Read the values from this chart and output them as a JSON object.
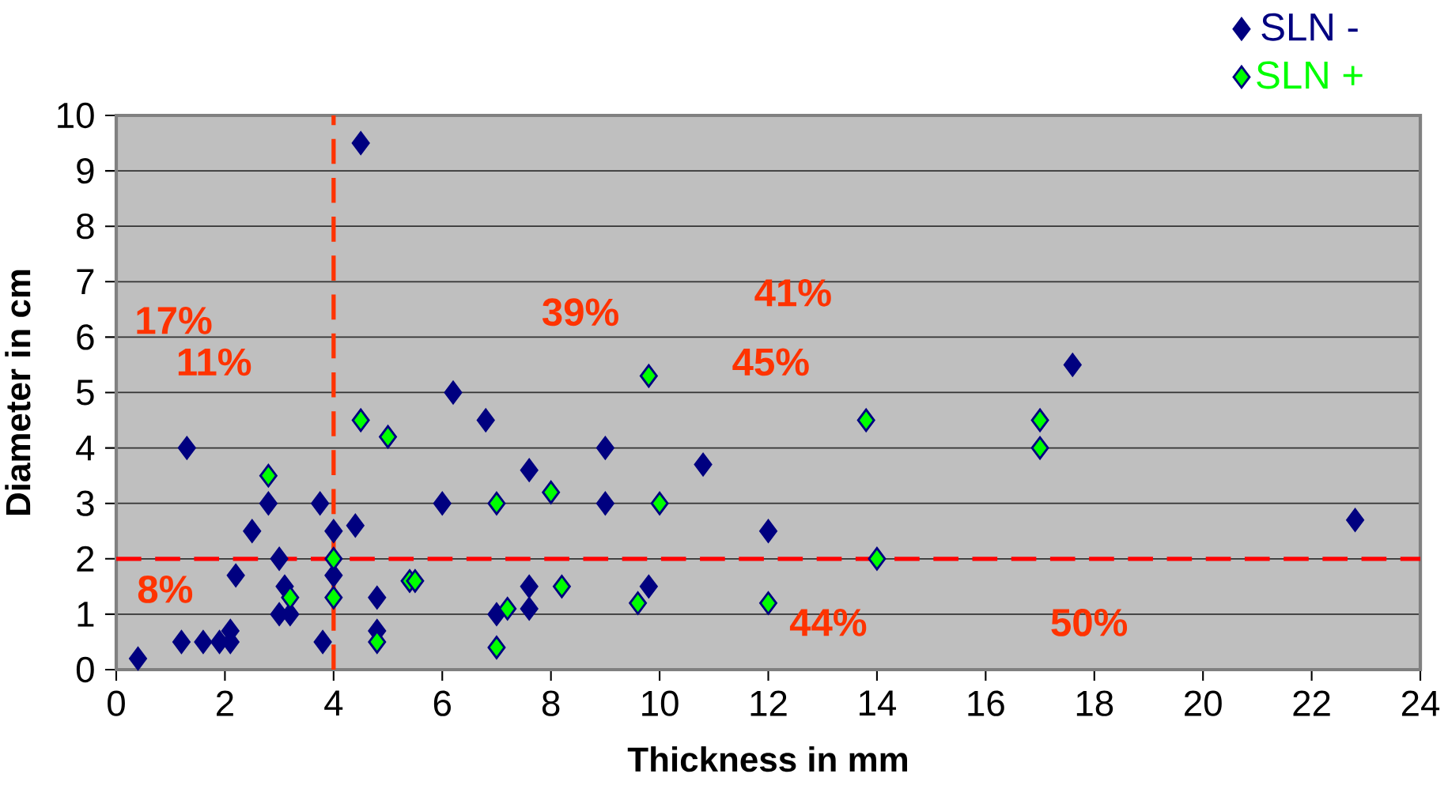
{
  "chart_data": {
    "type": "scatter",
    "xlabel": "Thickness in mm",
    "ylabel": "Diameter in cm",
    "xlim": [
      0,
      24
    ],
    "xticks": [
      0,
      2,
      4,
      6,
      8,
      10,
      12,
      14,
      16,
      18,
      20,
      22,
      24
    ],
    "ylim": [
      0,
      10
    ],
    "yticks": [
      0,
      1,
      2,
      3,
      4,
      5,
      6,
      7,
      8,
      9,
      10
    ],
    "grid": "y",
    "legend": "top right",
    "marker": "diamond",
    "series": [
      {
        "name": "SLN -",
        "color": "#000080",
        "x": [
          0.4,
          1.2,
          1.3,
          1.6,
          1.9,
          2.1,
          2.1,
          2.2,
          2.5,
          2.8,
          3.0,
          3.0,
          3.1,
          3.2,
          3.75,
          3.8,
          4.0,
          4.0,
          4.4,
          4.5,
          4.8,
          4.8,
          6.0,
          6.2,
          6.8,
          7.0,
          7.6,
          7.6,
          7.6,
          9.0,
          9.0,
          9.8,
          10.8,
          12.0,
          17.6,
          22.8
        ],
        "values": [
          0.2,
          0.5,
          4.0,
          0.5,
          0.5,
          0.7,
          0.5,
          1.7,
          2.5,
          3.0,
          2.0,
          1.0,
          1.5,
          1.0,
          3.0,
          0.5,
          2.5,
          1.7,
          2.6,
          9.5,
          1.3,
          0.7,
          3.0,
          5.0,
          4.5,
          1.0,
          3.6,
          1.5,
          1.1,
          4.0,
          3.0,
          1.5,
          3.7,
          2.5,
          5.5,
          2.7
        ]
      },
      {
        "name": "SLN +",
        "color": "#00ff00",
        "x": [
          2.8,
          3.2,
          4.0,
          4.0,
          4.5,
          4.8,
          5.0,
          5.4,
          5.5,
          7.0,
          7.0,
          7.2,
          8.0,
          8.2,
          9.6,
          9.8,
          10.0,
          12.0,
          13.8,
          14.0,
          17.0,
          17.0
        ],
        "values": [
          3.5,
          1.3,
          2.0,
          1.3,
          4.5,
          0.5,
          4.2,
          1.6,
          1.6,
          3.0,
          0.4,
          1.1,
          3.2,
          1.5,
          1.2,
          5.3,
          3.0,
          1.2,
          4.5,
          2.0,
          4.5,
          4.0
        ]
      }
    ],
    "ref_lines": [
      {
        "axis": "x",
        "value": 4,
        "color": "#ff3300",
        "line_style": "dashed"
      },
      {
        "axis": "y",
        "value": 2,
        "color": "#ff0000",
        "line_style": "dashed"
      }
    ],
    "annotations": [
      "17%",
      "11%",
      "39%",
      "41%",
      "45%",
      "8%",
      "44%",
      "50%"
    ]
  }
}
